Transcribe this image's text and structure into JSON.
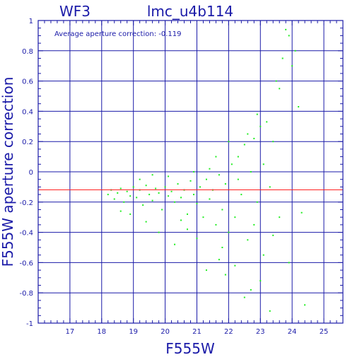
{
  "chart_data": {
    "type": "scatter",
    "title": "lmc_u4b114",
    "panel_label": "WF3",
    "annotation": "Average aperture correction: -0.119",
    "xlabel": "F555W",
    "ylabel": "F555W aperture correction",
    "xlim": [
      16,
      25.6
    ],
    "ylim": [
      -1,
      1
    ],
    "x_ticks": [
      "17",
      "18",
      "19",
      "20",
      "21",
      "22",
      "23",
      "24",
      "25"
    ],
    "y_ticks": [
      "-1",
      "-0.8",
      "-0.6",
      "-0.4",
      "-0.2",
      "0",
      "0.2",
      "0.4",
      "0.6",
      "0.8",
      "1"
    ],
    "grid": true,
    "reference_line": {
      "y": -0.119,
      "color": "#ff2020"
    },
    "colors": {
      "axes": "#1a1aa8",
      "points": "#22ee22",
      "reference": "#ff2020"
    },
    "series": [
      {
        "points": [
          [
            18.2,
            -0.15
          ],
          [
            18.3,
            -0.12
          ],
          [
            18.4,
            -0.18
          ],
          [
            18.5,
            -0.14
          ],
          [
            18.6,
            -0.11
          ],
          [
            18.7,
            -0.2
          ],
          [
            18.8,
            -0.13
          ],
          [
            18.9,
            -0.16
          ],
          [
            19.0,
            -0.1
          ],
          [
            19.1,
            -0.17
          ],
          [
            19.2,
            -0.12
          ],
          [
            19.3,
            -0.22
          ],
          [
            19.4,
            -0.09
          ],
          [
            19.5,
            -0.15
          ],
          [
            19.6,
            -0.19
          ],
          [
            19.7,
            -0.11
          ],
          [
            19.8,
            -0.14
          ],
          [
            19.9,
            -0.25
          ],
          [
            20.0,
            -0.1
          ],
          [
            20.1,
            -0.16
          ],
          [
            20.2,
            -0.13
          ],
          [
            20.3,
            -0.2
          ],
          [
            20.4,
            -0.08
          ],
          [
            20.5,
            -0.17
          ],
          [
            20.6,
            -0.12
          ],
          [
            20.7,
            -0.28
          ],
          [
            20.8,
            -0.06
          ],
          [
            20.9,
            -0.15
          ],
          [
            21.0,
            -0.21
          ],
          [
            21.1,
            -0.1
          ],
          [
            21.2,
            -0.3
          ],
          [
            21.3,
            -0.05
          ],
          [
            21.4,
            -0.18
          ],
          [
            21.5,
            -0.12
          ],
          [
            21.6,
            -0.35
          ],
          [
            21.7,
            -0.02
          ],
          [
            21.8,
            -0.25
          ],
          [
            21.9,
            -0.08
          ],
          [
            22.0,
            -0.4
          ],
          [
            22.1,
            0.05
          ],
          [
            22.2,
            -0.3
          ],
          [
            22.3,
            0.1
          ],
          [
            22.4,
            -0.15
          ],
          [
            22.5,
            0.18
          ],
          [
            22.6,
            -0.45
          ],
          [
            22.7,
            0.0
          ],
          [
            22.8,
            0.22
          ],
          [
            22.9,
            -0.2
          ],
          [
            23.0,
            0.3
          ],
          [
            23.1,
            -0.55
          ],
          [
            23.2,
            0.33
          ],
          [
            23.3,
            -0.1
          ],
          [
            23.4,
            0.2
          ],
          [
            23.5,
            0.6
          ],
          [
            23.6,
            -0.3
          ],
          [
            23.7,
            0.75
          ],
          [
            23.8,
            0.94
          ],
          [
            23.9,
            -0.6
          ],
          [
            24.0,
            0.7
          ],
          [
            24.2,
            0.43
          ],
          [
            24.3,
            -0.27
          ],
          [
            24.4,
            -0.88
          ],
          [
            22.5,
            -0.83
          ],
          [
            21.7,
            -0.58
          ],
          [
            21.3,
            -0.65
          ],
          [
            23.0,
            -0.72
          ],
          [
            18.9,
            -0.28
          ],
          [
            19.4,
            -0.33
          ],
          [
            19.8,
            -0.4
          ],
          [
            20.3,
            -0.48
          ],
          [
            20.7,
            -0.38
          ],
          [
            21.8,
            -0.5
          ],
          [
            22.2,
            -0.62
          ],
          [
            22.7,
            -0.78
          ],
          [
            23.4,
            -0.42
          ],
          [
            22.9,
            0.38
          ],
          [
            23.1,
            0.05
          ],
          [
            22.6,
            0.25
          ],
          [
            22.0,
            0.2
          ],
          [
            21.6,
            0.1
          ],
          [
            19.2,
            -0.05
          ],
          [
            20.1,
            -0.03
          ],
          [
            20.9,
            0.0
          ],
          [
            21.4,
            0.02
          ],
          [
            22.3,
            -0.05
          ],
          [
            22.8,
            -0.35
          ],
          [
            23.6,
            0.55
          ],
          [
            23.9,
            0.9
          ],
          [
            24.1,
            0.8
          ],
          [
            18.6,
            -0.26
          ],
          [
            19.6,
            -0.02
          ],
          [
            20.5,
            -0.32
          ],
          [
            21.0,
            -0.44
          ],
          [
            21.9,
            -0.68
          ],
          [
            23.3,
            -0.92
          ]
        ]
      }
    ]
  }
}
